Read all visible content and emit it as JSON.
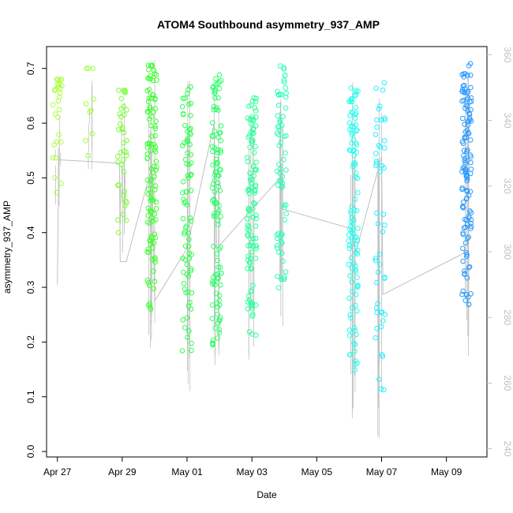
{
  "chart_data": {
    "type": "scatter",
    "title": "ATOM4 Southbound asymmetry_937_AMP",
    "xlabel": "Date",
    "ylabel": "asymmetry_937_AMP",
    "x_ticks": [
      "Apr 27",
      "Apr 29",
      "May 01",
      "May 03",
      "May 05",
      "May 07",
      "May 09"
    ],
    "x_range": [
      "2019-04-26T16:00",
      "2019-05-10T06:00"
    ],
    "ylim": [
      -0.01,
      0.74
    ],
    "y_ticks": [
      "0.0",
      "0.1",
      "0.2",
      "0.3",
      "0.4",
      "0.5",
      "0.6",
      "0.7"
    ],
    "y2_ticks": [
      "240",
      "260",
      "280",
      "300",
      "320",
      "340",
      "360"
    ],
    "y2lim": [
      237.5,
      362.5
    ],
    "grid": false,
    "legend": "none",
    "colors": {
      "frame": "#000000",
      "right_axis": "#c0c0c0",
      "secondary_line": "#c0c0c0",
      "point_scale": [
        "#9fff3a",
        "#2cff2c",
        "#2cff9a",
        "#22ffff",
        "#22b5ff",
        "#2a7cff"
      ]
    },
    "clusters": [
      {
        "date": "2019-04-27",
        "color": "#a8ff3c",
        "n": 28,
        "y_min": 0.42,
        "y_max": 0.68
      },
      {
        "date": "2019-04-28",
        "color": "#9cff3a",
        "n": 10,
        "y_min": 0.49,
        "y_max": 0.7
      },
      {
        "date": "2019-04-29",
        "color": "#7cff35",
        "n": 40,
        "y_min": 0.35,
        "y_max": 0.66
      },
      {
        "date": "2019-04-29T22:00",
        "color": "#3cff2f",
        "n": 110,
        "y_min": 0.17,
        "y_max": 0.72
      },
      {
        "date": "2019-05-01",
        "color": "#2cff4c",
        "n": 80,
        "y_min": 0.08,
        "y_max": 0.68
      },
      {
        "date": "2019-05-01T22:00",
        "color": "#2cff66",
        "n": 110,
        "y_min": 0.09,
        "y_max": 0.69
      },
      {
        "date": "2019-05-03",
        "color": "#2cff9a",
        "n": 110,
        "y_min": 0.13,
        "y_max": 0.66
      },
      {
        "date": "2019-05-03T22:00",
        "color": "#2cffb5",
        "n": 70,
        "y_min": 0.21,
        "y_max": 0.71
      },
      {
        "date": "2019-05-06T03:00",
        "color": "#22ffee",
        "n": 110,
        "y_min": 0.06,
        "y_max": 0.7
      },
      {
        "date": "2019-05-06T23:00",
        "color": "#22f0ff",
        "n": 50,
        "y_min": 0.01,
        "y_max": 0.69
      },
      {
        "date": "2019-05-09T15:00",
        "color": "#2a9cff",
        "n": 130,
        "y_min": 0.17,
        "y_max": 0.71
      }
    ],
    "secondary_series": {
      "name": "",
      "axis": "right",
      "x": [
        "2019-04-27",
        "2019-04-27T01:00",
        "2019-04-28T22:00",
        "2019-04-28T22:30",
        "2019-04-29T03:00",
        "2019-04-29T22:00",
        "2019-04-30",
        "2019-05-01",
        "2019-05-01T20:00",
        "2019-05-01T22:00",
        "2019-05-03",
        "2019-05-03T22:00",
        "2019-05-03T23:00",
        "2019-05-06T02:00",
        "2019-05-06T05:00",
        "2019-05-07",
        "2019-05-07T01:00",
        "2019-05-09T15:00"
      ],
      "y": [
        290,
        328,
        327,
        297,
        297,
        326,
        285,
        301,
        339,
        301,
        313,
        323,
        313,
        307,
        300,
        329,
        287,
        300
      ]
    }
  }
}
